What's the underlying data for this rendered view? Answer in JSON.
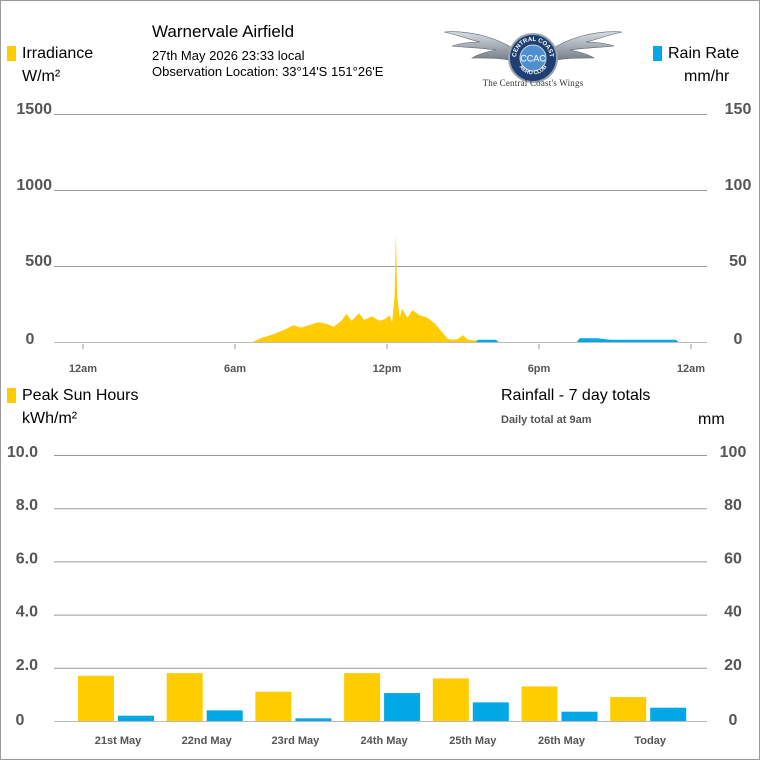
{
  "header": {
    "title": "Warnervale Airfield",
    "datetime": "27th May 2026  23:33 local",
    "location": "Observation Location: 33°14'S 151°26'E"
  },
  "logo": {
    "ring_text_top": "CENTRAL COAST",
    "ring_text_bottom": "AERO CLUB",
    "monogram": "CCAC",
    "caption": "The Central Coast's Wings"
  },
  "colors": {
    "irradiance": "#ffcc00",
    "rain": "#00a8e6",
    "grid": "#9a9a9a",
    "axis_text": "#555555"
  },
  "top_chart": {
    "left_label": "Irradiance",
    "left_unit": "W/m²",
    "right_label": "Rain Rate",
    "right_unit": "mm/hr"
  },
  "bottom_chart": {
    "left_label": "Peak Sun Hours",
    "left_unit": "kWh/m²",
    "right_label": "Rainfall - 7 day totals",
    "right_note": "Daily total at 9am",
    "right_unit": "mm"
  },
  "chart_data": [
    {
      "type": "area",
      "x_axis": "time of day (hours)",
      "xticks": [
        {
          "x": 0,
          "label": "12am"
        },
        {
          "x": 6,
          "label": "6am"
        },
        {
          "x": 12,
          "label": "12pm"
        },
        {
          "x": 18,
          "label": "6pm"
        },
        {
          "x": 24,
          "label": "12am"
        }
      ],
      "xlim": [
        0,
        24
      ],
      "y_left": {
        "ylim": [
          0,
          1500
        ],
        "ticks": [
          "0",
          "500",
          "1000",
          "1500"
        ]
      },
      "y_right": {
        "ylim": [
          0,
          150
        ],
        "ticks": [
          "0",
          "50",
          "100",
          "150"
        ]
      },
      "grid": true,
      "series": [
        {
          "name": "Irradiance",
          "axis": "left",
          "x": [
            6.7,
            7.0,
            7.5,
            8.0,
            8.3,
            8.6,
            9.0,
            9.3,
            9.6,
            9.9,
            10.2,
            10.4,
            10.6,
            10.9,
            11.1,
            11.4,
            11.7,
            11.9,
            12.1,
            12.2,
            12.3,
            12.35,
            12.4,
            12.5,
            12.6,
            12.8,
            13.0,
            13.3,
            13.6,
            13.9,
            14.2,
            14.4,
            14.6,
            14.8,
            15.0,
            15.2,
            15.5,
            15.8,
            16.0,
            16.2,
            16.5
          ],
          "y": [
            0,
            25,
            50,
            85,
            110,
            95,
            115,
            130,
            120,
            100,
            140,
            185,
            140,
            190,
            145,
            170,
            140,
            150,
            175,
            130,
            300,
            720,
            300,
            160,
            220,
            160,
            210,
            175,
            160,
            120,
            60,
            20,
            15,
            20,
            45,
            15,
            10,
            8,
            8,
            5,
            0
          ]
        },
        {
          "name": "Rain Rate",
          "axis": "right",
          "x": [
            15.5,
            15.6,
            16.3,
            16.4,
            19.5,
            19.6,
            20.3,
            20.8,
            23.4,
            23.5
          ],
          "y": [
            0,
            1.5,
            1.5,
            0,
            0,
            2.5,
            2.5,
            1.5,
            1.5,
            0
          ]
        }
      ]
    },
    {
      "type": "bar",
      "categories": [
        "21st May",
        "22nd May",
        "23rd May",
        "24th May",
        "25th May",
        "26th May",
        "Today"
      ],
      "y_left": {
        "ylim": [
          0,
          10
        ],
        "ticks": [
          "0",
          "2.0",
          "4.0",
          "6.0",
          "8.0",
          "10.0"
        ]
      },
      "y_right": {
        "ylim": [
          0,
          100
        ],
        "ticks": [
          "0",
          "20",
          "40",
          "60",
          "80",
          "100"
        ]
      },
      "grid": true,
      "series": [
        {
          "name": "Peak Sun Hours",
          "axis": "left",
          "values": [
            1.7,
            1.8,
            1.1,
            1.8,
            1.6,
            1.3,
            0.9
          ]
        },
        {
          "name": "Rainfall - 7 day totals",
          "axis": "right",
          "values": [
            2,
            4,
            1,
            10.5,
            7,
            3.5,
            5
          ]
        }
      ]
    }
  ]
}
